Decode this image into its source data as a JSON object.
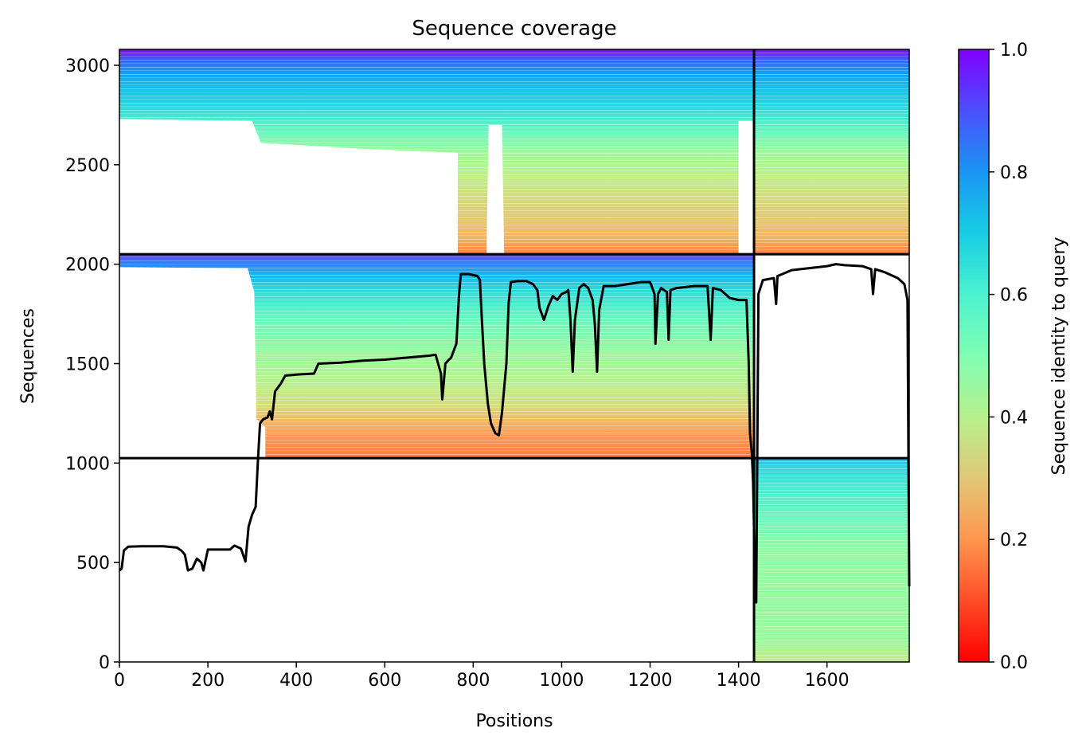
{
  "chart_data": {
    "type": "heatmap",
    "title": "Sequence coverage",
    "xlabel": "Positions",
    "ylabel": "Sequences",
    "xlim": [
      0,
      1786
    ],
    "ylim": [
      0,
      3080
    ],
    "x_ticks": [
      0,
      200,
      400,
      600,
      800,
      1000,
      1200,
      1400,
      1600
    ],
    "y_ticks": [
      0,
      500,
      1000,
      1500,
      2000,
      2500,
      3000
    ],
    "colorbar": {
      "label": "Sequence identity to query",
      "colormap": "rainbow_r",
      "range": [
        0.0,
        1.0
      ],
      "ticks": [
        "0.0",
        "0.2",
        "0.4",
        "0.6",
        "0.8",
        "1.0"
      ]
    },
    "chain_boundary_x": 1435,
    "group_boundaries_y": [
      1025,
      2050
    ],
    "blocks": [
      {
        "name": "group-3",
        "x": [
          0,
          1435
        ],
        "y": [
          2050,
          3080
        ],
        "identity_top": 1.0,
        "identity_bottom": 0.25
      },
      {
        "name": "group-3-chain-b",
        "x": [
          1435,
          1786
        ],
        "y": [
          2050,
          3080
        ],
        "identity_top": 1.0,
        "identity_bottom": 0.25
      },
      {
        "name": "group-2",
        "x": [
          0,
          1435
        ],
        "y": [
          1025,
          2050
        ],
        "identity_top": 1.0,
        "identity_bottom": 0.22
      },
      {
        "name": "group-1-chain-b",
        "x": [
          1435,
          1786
        ],
        "y": [
          0,
          1025
        ],
        "identity_top": 0.75,
        "identity_bottom": 0.35
      }
    ],
    "series": [
      {
        "type": "line",
        "color": "#000000",
        "points": [
          [
            0,
            460
          ],
          [
            5,
            470
          ],
          [
            10,
            560
          ],
          [
            20,
            580
          ],
          [
            50,
            582
          ],
          [
            100,
            582
          ],
          [
            130,
            575
          ],
          [
            140,
            560
          ],
          [
            148,
            540
          ],
          [
            155,
            460
          ],
          [
            165,
            470
          ],
          [
            175,
            520
          ],
          [
            185,
            500
          ],
          [
            190,
            460
          ],
          [
            200,
            565
          ],
          [
            230,
            565
          ],
          [
            250,
            565
          ],
          [
            260,
            585
          ],
          [
            275,
            570
          ],
          [
            285,
            505
          ],
          [
            292,
            680
          ],
          [
            300,
            740
          ],
          [
            308,
            780
          ],
          [
            313,
            1000
          ],
          [
            318,
            1200
          ],
          [
            325,
            1220
          ],
          [
            335,
            1230
          ],
          [
            340,
            1260
          ],
          [
            345,
            1220
          ],
          [
            352,
            1360
          ],
          [
            365,
            1400
          ],
          [
            375,
            1440
          ],
          [
            400,
            1445
          ],
          [
            440,
            1450
          ],
          [
            450,
            1500
          ],
          [
            500,
            1505
          ],
          [
            550,
            1515
          ],
          [
            600,
            1520
          ],
          [
            650,
            1530
          ],
          [
            700,
            1540
          ],
          [
            715,
            1545
          ],
          [
            722,
            1490
          ],
          [
            727,
            1450
          ],
          [
            730,
            1320
          ],
          [
            737,
            1500
          ],
          [
            745,
            1520
          ],
          [
            750,
            1530
          ],
          [
            755,
            1560
          ],
          [
            762,
            1600
          ],
          [
            768,
            1850
          ],
          [
            772,
            1950
          ],
          [
            790,
            1950
          ],
          [
            810,
            1940
          ],
          [
            815,
            1920
          ],
          [
            820,
            1700
          ],
          [
            825,
            1500
          ],
          [
            833,
            1300
          ],
          [
            840,
            1200
          ],
          [
            850,
            1150
          ],
          [
            858,
            1140
          ],
          [
            865,
            1250
          ],
          [
            875,
            1500
          ],
          [
            880,
            1800
          ],
          [
            885,
            1910
          ],
          [
            900,
            1915
          ],
          [
            920,
            1915
          ],
          [
            935,
            1900
          ],
          [
            945,
            1870
          ],
          [
            950,
            1780
          ],
          [
            960,
            1720
          ],
          [
            970,
            1790
          ],
          [
            980,
            1840
          ],
          [
            990,
            1820
          ],
          [
            1000,
            1850
          ],
          [
            1010,
            1860
          ],
          [
            1015,
            1870
          ],
          [
            1020,
            1720
          ],
          [
            1025,
            1460
          ],
          [
            1030,
            1720
          ],
          [
            1040,
            1880
          ],
          [
            1050,
            1900
          ],
          [
            1060,
            1880
          ],
          [
            1070,
            1820
          ],
          [
            1075,
            1700
          ],
          [
            1080,
            1460
          ],
          [
            1085,
            1770
          ],
          [
            1095,
            1890
          ],
          [
            1120,
            1890
          ],
          [
            1150,
            1900
          ],
          [
            1180,
            1910
          ],
          [
            1200,
            1910
          ],
          [
            1210,
            1850
          ],
          [
            1212,
            1600
          ],
          [
            1218,
            1850
          ],
          [
            1225,
            1880
          ],
          [
            1238,
            1860
          ],
          [
            1242,
            1620
          ],
          [
            1246,
            1870
          ],
          [
            1260,
            1880
          ],
          [
            1300,
            1890
          ],
          [
            1330,
            1890
          ],
          [
            1337,
            1620
          ],
          [
            1342,
            1880
          ],
          [
            1360,
            1870
          ],
          [
            1380,
            1830
          ],
          [
            1400,
            1820
          ],
          [
            1418,
            1820
          ],
          [
            1423,
            1500
          ],
          [
            1426,
            1150
          ],
          [
            1430,
            1050
          ],
          [
            1433,
            900
          ],
          [
            1436,
            560
          ],
          [
            1440,
            300
          ],
          [
            1445,
            1850
          ],
          [
            1455,
            1920
          ],
          [
            1480,
            1930
          ],
          [
            1485,
            1800
          ],
          [
            1488,
            1940
          ],
          [
            1520,
            1970
          ],
          [
            1560,
            1980
          ],
          [
            1600,
            1990
          ],
          [
            1620,
            2000
          ],
          [
            1640,
            1995
          ],
          [
            1680,
            1990
          ],
          [
            1700,
            1975
          ],
          [
            1704,
            1850
          ],
          [
            1709,
            1975
          ],
          [
            1730,
            1960
          ],
          [
            1760,
            1930
          ],
          [
            1775,
            1900
          ],
          [
            1782,
            1820
          ],
          [
            1786,
            380
          ]
        ]
      }
    ]
  }
}
